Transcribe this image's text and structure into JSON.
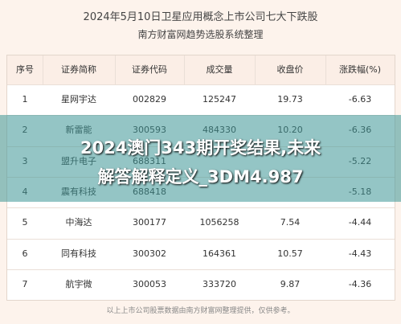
{
  "header": {
    "title": "2024年5月10日卫星应用概念上市公司七大下跌股",
    "subtitle": "南方财富网趋势选股系统整理"
  },
  "table": {
    "columns": [
      "序号",
      "证券简称",
      "证券代码",
      "成交量",
      "收盘价",
      "涨跌幅(%)"
    ],
    "rows": [
      {
        "no": "1",
        "name": "星网宇达",
        "code": "002829",
        "volume": "125247",
        "close": "19.73",
        "change": "-6.63"
      },
      {
        "no": "2",
        "name": "新雷能",
        "code": "300593",
        "volume": "484330",
        "close": "10.20",
        "change": "-6.36"
      },
      {
        "no": "3",
        "name": "盟升电子",
        "code": "688311",
        "change": "-5.22"
      },
      {
        "no": "4",
        "name": "震有科技",
        "code": "688418",
        "change": "-5.18"
      },
      {
        "no": "5",
        "name": "中海达",
        "code": "300177",
        "volume": "1056258",
        "close": "7.54",
        "change": "-4.44"
      },
      {
        "no": "6",
        "name": "同有科技",
        "code": "300302",
        "volume": "164361",
        "close": "10.57",
        "change": "-4.43"
      },
      {
        "no": "7",
        "name": "航宇微",
        "code": "300053",
        "volume": "333720",
        "close": "9.87",
        "change": "-4.36"
      }
    ]
  },
  "footer": "以上上市公司股票数据由南方财富网整理提供，仅供参考。",
  "overlay": {
    "line1": "2024澳门343期开奖结果,未来",
    "line2": "解答解释定义_3DM4.987"
  }
}
